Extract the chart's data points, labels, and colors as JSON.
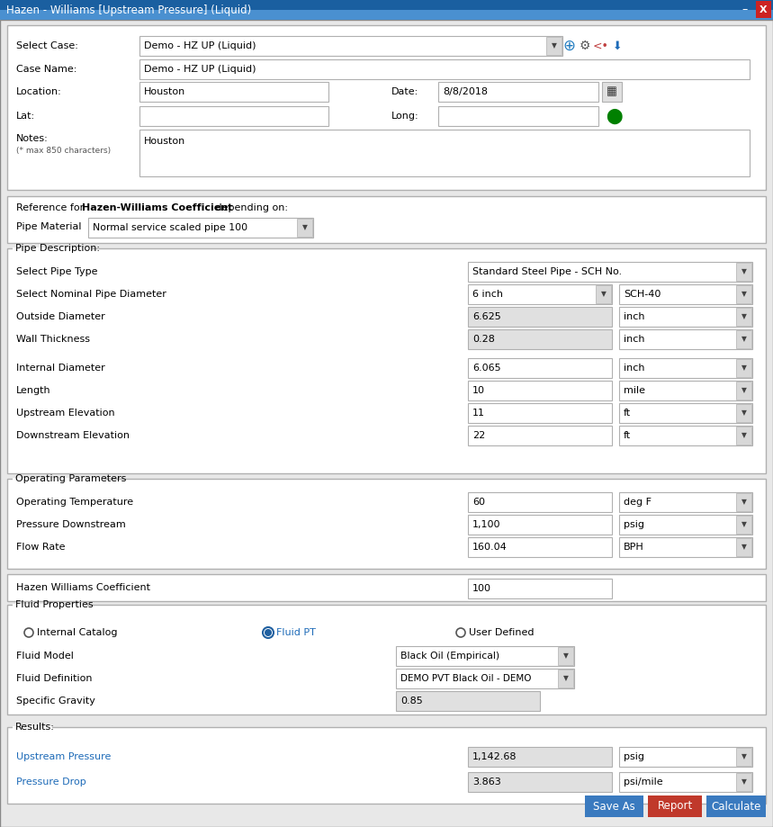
{
  "title": "Hazen - Williams [Upstream Pressure] (Liquid)",
  "title_bg": "#4a90d0",
  "title_bg2": "#1a5fa0",
  "title_fg": "white",
  "bg_color": "#e8e8e8",
  "panel_bg": "#f2f2f2",
  "white": "#ffffff",
  "field_bg": "#ffffff",
  "field_bg_gray": "#e0e0e0",
  "border_color": "#b0b0b0",
  "border_dark": "#888888",
  "text_color": "#000000",
  "blue_text": "#1e6bb8",
  "select_case_label": "Select Case:",
  "select_case_value": "Demo - HZ UP (Liquid)",
  "case_name_label": "Case Name:",
  "case_name_value": "Demo - HZ UP (Liquid)",
  "location_label": "Location:",
  "location_value": "Houston",
  "date_label": "Date:",
  "date_value": "8/8/2018",
  "lat_label": "Lat:",
  "long_label": "Long:",
  "notes_label": "Notes:",
  "notes_subtext": "(* max 850 characters)",
  "notes_value": "Houston",
  "reference_text": "Reference for ",
  "reference_bold": "Hazen-Williams Coefficient",
  "reference_end": " depending on:",
  "pipe_material_label": "Pipe Material",
  "pipe_material_value": "Normal service scaled pipe 100",
  "pipe_desc_label": "Pipe Description:",
  "select_pipe_type_label": "Select Pipe Type",
  "select_pipe_type_value": "Standard Steel Pipe - SCH No.",
  "select_nominal_label": "Select Nominal Pipe Diameter",
  "nominal_value1": "6 inch",
  "nominal_value2": "SCH-40",
  "outside_diam_label": "Outside Diameter",
  "outside_diam_value": "6.625",
  "outside_diam_unit": "inch",
  "wall_thick_label": "Wall Thickness",
  "wall_thick_value": "0.28",
  "wall_thick_unit": "inch",
  "internal_diam_label": "Internal Diameter",
  "internal_diam_value": "6.065",
  "internal_diam_unit": "inch",
  "length_label": "Length",
  "length_value": "10",
  "length_unit": "mile",
  "upstream_elev_label": "Upstream Elevation",
  "upstream_elev_value": "11",
  "upstream_elev_unit": "ft",
  "downstream_elev_label": "Downstream Elevation",
  "downstream_elev_value": "22",
  "downstream_elev_unit": "ft",
  "op_params_label": "Operating Parameters",
  "op_temp_label": "Operating Temperature",
  "op_temp_value": "60",
  "op_temp_unit": "deg F",
  "pressure_ds_label": "Pressure Downstream",
  "pressure_ds_value": "1,100",
  "pressure_ds_unit": "psig",
  "flow_rate_label": "Flow Rate",
  "flow_rate_value": "160.04",
  "flow_rate_unit": "BPH",
  "hw_coeff_label": "Hazen Williams Coefficient",
  "hw_coeff_value": "100",
  "fluid_props_label": "Fluid Properties",
  "radio_internal": "Internal Catalog",
  "radio_fluid_pt": "Fluid PT",
  "radio_user": "User Defined",
  "fluid_model_label": "Fluid Model",
  "fluid_model_value": "Black Oil (Empirical)",
  "fluid_def_label": "Fluid Definition",
  "fluid_def_value": "DEMO PVT Black Oil - DEMO",
  "specific_grav_label": "Specific Gravity",
  "specific_grav_value": "0.85",
  "results_label": "Results:",
  "upstream_pres_label": "Upstream Pressure",
  "upstream_pres_value": "1,142.68",
  "upstream_pres_unit": "psig",
  "pressure_drop_label": "Pressure Drop",
  "pressure_drop_value": "3.863",
  "pressure_drop_unit": "psi/mile",
  "btn_save_as": "Save As",
  "btn_report": "Report",
  "btn_calculate": "Calculate",
  "btn_save_color": "#3a7abf",
  "btn_report_color": "#c0392b",
  "btn_calc_color": "#3a7abf"
}
